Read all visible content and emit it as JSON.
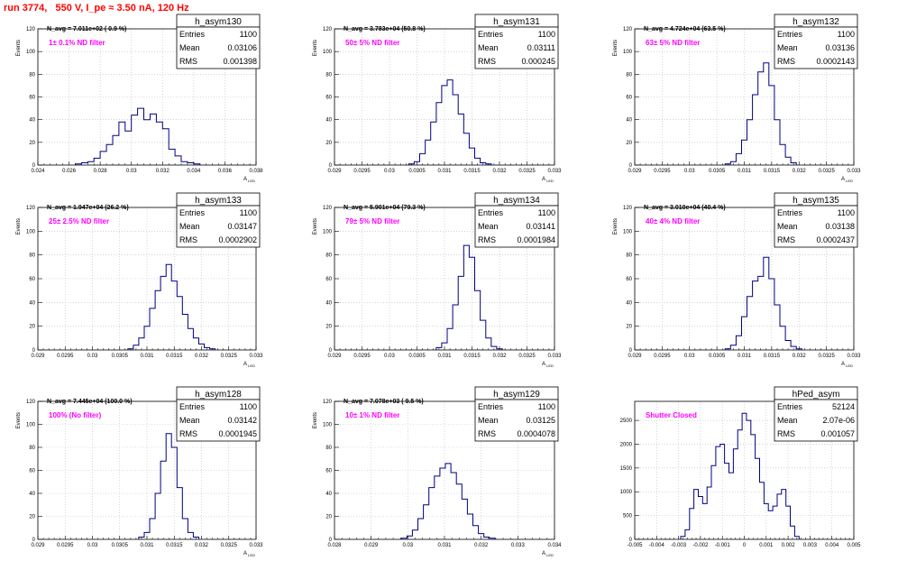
{
  "page": {
    "title": "run 3774,   550 V, I_pe ≈ 3.50 nA, 120 Hz"
  },
  "colors": {
    "histogram": "#000080",
    "filter_label": "#ff00ff",
    "title": "#ff0000",
    "grid": "#bbbbbb"
  },
  "chart_data": [
    {
      "type": "histogram",
      "name": "h_asym130",
      "stats": {
        "entries_label": "Entries",
        "entries": "1100",
        "mean_label": "Mean",
        "mean": "0.03106",
        "rms_label": "RMS",
        "rms": "0.001398"
      },
      "navg_text": "N_avg = 7.011e+02 ( 0.9 %)",
      "filter_text": "1± 0.1% ND filter",
      "xlabel": "A_{LED}",
      "ylabel": "Events",
      "xlim": [
        0.024,
        0.038
      ],
      "x_ticks": [
        0.024,
        0.026,
        0.028,
        0.03,
        0.032,
        0.034,
        0.036,
        0.038
      ],
      "x_tick_labels": [
        "0.024",
        "0.026",
        "0.028",
        "0.03",
        "0.032",
        "0.034",
        "0.036",
        "0.038"
      ],
      "ylim": [
        0,
        120
      ],
      "y_ticks": [
        0,
        20,
        40,
        60,
        80,
        100,
        120
      ],
      "y_tick_labels": [
        "0",
        "20",
        "40",
        "60",
        "80",
        "100",
        "120"
      ],
      "grid": true,
      "bins": [
        [
          0.0266,
          1
        ],
        [
          0.027,
          2
        ],
        [
          0.0274,
          3
        ],
        [
          0.0278,
          6
        ],
        [
          0.0282,
          12
        ],
        [
          0.0286,
          18
        ],
        [
          0.029,
          26
        ],
        [
          0.0294,
          38
        ],
        [
          0.0298,
          30
        ],
        [
          0.0302,
          44
        ],
        [
          0.0306,
          50
        ],
        [
          0.031,
          40
        ],
        [
          0.0314,
          45
        ],
        [
          0.0318,
          38
        ],
        [
          0.0322,
          32
        ],
        [
          0.0326,
          14
        ],
        [
          0.033,
          8
        ],
        [
          0.0334,
          3
        ],
        [
          0.0338,
          2
        ],
        [
          0.0342,
          1
        ]
      ]
    },
    {
      "type": "histogram",
      "name": "h_asym131",
      "stats": {
        "entries_label": "Entries",
        "entries": "1100",
        "mean_label": "Mean",
        "mean": "0.03111",
        "rms_label": "RMS",
        "rms": "0.000245"
      },
      "navg_text": "N_avg = 3.783e+04 (50.8 %)",
      "filter_text": "50± 5% ND filter",
      "xlabel": "A_{LED}",
      "ylabel": "Events",
      "xlim": [
        0.029,
        0.033
      ],
      "x_ticks": [
        0.029,
        0.0295,
        0.03,
        0.0305,
        0.031,
        0.0315,
        0.032,
        0.0325,
        0.033
      ],
      "x_tick_labels": [
        "0.029",
        "0.0295",
        "0.03",
        "0.0305",
        "0.031",
        "0.0315",
        "0.032",
        "0.0325",
        "0.033"
      ],
      "ylim": [
        0,
        120
      ],
      "y_ticks": [
        0,
        20,
        40,
        60,
        80,
        100,
        120
      ],
      "y_tick_labels": [
        "0",
        "20",
        "40",
        "60",
        "80",
        "100",
        "120"
      ],
      "grid": true,
      "bins": [
        [
          0.0304,
          1
        ],
        [
          0.0305,
          3
        ],
        [
          0.0306,
          10
        ],
        [
          0.0307,
          22
        ],
        [
          0.0308,
          38
        ],
        [
          0.0309,
          55
        ],
        [
          0.031,
          70
        ],
        [
          0.0311,
          75
        ],
        [
          0.0312,
          62
        ],
        [
          0.0313,
          45
        ],
        [
          0.0314,
          28
        ],
        [
          0.0315,
          15
        ],
        [
          0.0316,
          6
        ],
        [
          0.0317,
          2
        ],
        [
          0.0318,
          1
        ]
      ]
    },
    {
      "type": "histogram",
      "name": "h_asym132",
      "stats": {
        "entries_label": "Entries",
        "entries": "1100",
        "mean_label": "Mean",
        "mean": "0.03136",
        "rms_label": "RMS",
        "rms": "0.0002143"
      },
      "navg_text": "N_avg = 4.724e+04 (63.5 %)",
      "filter_text": "63± 5% ND filter",
      "xlabel": "A_{LED}",
      "ylabel": "Events",
      "xlim": [
        0.029,
        0.033
      ],
      "x_ticks": [
        0.029,
        0.0295,
        0.03,
        0.0305,
        0.031,
        0.0315,
        0.032,
        0.0325,
        0.033
      ],
      "x_tick_labels": [
        "0.029",
        "0.0295",
        "0.03",
        "0.0305",
        "0.031",
        "0.0315",
        "0.032",
        "0.0325",
        "0.033"
      ],
      "ylim": [
        0,
        120
      ],
      "y_ticks": [
        0,
        20,
        40,
        60,
        80,
        100,
        120
      ],
      "y_tick_labels": [
        "0",
        "20",
        "40",
        "60",
        "80",
        "100",
        "120"
      ],
      "grid": true,
      "bins": [
        [
          0.0307,
          1
        ],
        [
          0.0308,
          3
        ],
        [
          0.0309,
          10
        ],
        [
          0.031,
          22
        ],
        [
          0.0311,
          40
        ],
        [
          0.0312,
          62
        ],
        [
          0.0313,
          82
        ],
        [
          0.0314,
          90
        ],
        [
          0.0315,
          70
        ],
        [
          0.0316,
          40
        ],
        [
          0.0317,
          18
        ],
        [
          0.0318,
          7
        ],
        [
          0.0319,
          2
        ]
      ]
    },
    {
      "type": "histogram",
      "name": "h_asym133",
      "stats": {
        "entries_label": "Entries",
        "entries": "1100",
        "mean_label": "Mean",
        "mean": "0.03147",
        "rms_label": "RMS",
        "rms": "0.0002902"
      },
      "navg_text": "N_avg = 1.947e+04 (26.2 %)",
      "filter_text": "25± 2.5% ND filter",
      "xlabel": "A_{LED}",
      "ylabel": "Events",
      "xlim": [
        0.029,
        0.033
      ],
      "x_ticks": [
        0.029,
        0.0295,
        0.03,
        0.0305,
        0.031,
        0.0315,
        0.032,
        0.0325,
        0.033
      ],
      "x_tick_labels": [
        "0.029",
        "0.0295",
        "0.03",
        "0.0305",
        "0.031",
        "0.0315",
        "0.032",
        "0.0325",
        "0.033"
      ],
      "ylim": [
        0,
        120
      ],
      "y_ticks": [
        0,
        20,
        40,
        60,
        80,
        100,
        120
      ],
      "y_tick_labels": [
        "0",
        "20",
        "40",
        "60",
        "80",
        "100",
        "120"
      ],
      "grid": true,
      "bins": [
        [
          0.0307,
          1
        ],
        [
          0.0308,
          4
        ],
        [
          0.0309,
          10
        ],
        [
          0.031,
          20
        ],
        [
          0.0311,
          35
        ],
        [
          0.0312,
          50
        ],
        [
          0.0313,
          62
        ],
        [
          0.0314,
          72
        ],
        [
          0.0315,
          58
        ],
        [
          0.0316,
          45
        ],
        [
          0.0317,
          30
        ],
        [
          0.0318,
          18
        ],
        [
          0.0319,
          10
        ],
        [
          0.032,
          5
        ],
        [
          0.0321,
          2
        ],
        [
          0.0322,
          1
        ]
      ]
    },
    {
      "type": "histogram",
      "name": "h_asym134",
      "stats": {
        "entries_label": "Entries",
        "entries": "1100",
        "mean_label": "Mean",
        "mean": "0.03141",
        "rms_label": "RMS",
        "rms": "0.0001984"
      },
      "navg_text": "N_avg = 5.901e+04 (79.3 %)",
      "filter_text": "79± 5% ND filter",
      "xlabel": "A_{LED}",
      "ylabel": "Events",
      "xlim": [
        0.029,
        0.033
      ],
      "x_ticks": [
        0.029,
        0.0295,
        0.03,
        0.0305,
        0.031,
        0.0315,
        0.032,
        0.0325,
        0.033
      ],
      "x_tick_labels": [
        "0.029",
        "0.0295",
        "0.03",
        "0.0305",
        "0.031",
        "0.0315",
        "0.032",
        "0.0325",
        "0.033"
      ],
      "ylim": [
        0,
        120
      ],
      "y_ticks": [
        0,
        20,
        40,
        60,
        80,
        100,
        120
      ],
      "y_tick_labels": [
        "0",
        "20",
        "40",
        "60",
        "80",
        "100",
        "120"
      ],
      "grid": true,
      "bins": [
        [
          0.0309,
          2
        ],
        [
          0.031,
          6
        ],
        [
          0.0311,
          18
        ],
        [
          0.0312,
          38
        ],
        [
          0.0313,
          62
        ],
        [
          0.0314,
          88
        ],
        [
          0.0315,
          78
        ],
        [
          0.0316,
          50
        ],
        [
          0.0317,
          25
        ],
        [
          0.0318,
          10
        ],
        [
          0.0319,
          3
        ],
        [
          0.032,
          1
        ]
      ]
    },
    {
      "type": "histogram",
      "name": "h_asym135",
      "stats": {
        "entries_label": "Entries",
        "entries": "1100",
        "mean_label": "Mean",
        "mean": "0.03138",
        "rms_label": "RMS",
        "rms": "0.0002437"
      },
      "navg_text": "N_avg = 3.010e+04 (40.4 %)",
      "filter_text": "40± 4% ND filter",
      "xlabel": "A_{LED}",
      "ylabel": "Events",
      "xlim": [
        0.029,
        0.033
      ],
      "x_ticks": [
        0.029,
        0.0295,
        0.03,
        0.0305,
        0.031,
        0.0315,
        0.032,
        0.0325,
        0.033
      ],
      "x_tick_labels": [
        "0.029",
        "0.0295",
        "0.03",
        "0.0305",
        "0.031",
        "0.0315",
        "0.032",
        "0.0325",
        "0.033"
      ],
      "ylim": [
        0,
        120
      ],
      "y_ticks": [
        0,
        20,
        40,
        60,
        80,
        100,
        120
      ],
      "y_tick_labels": [
        "0",
        "20",
        "40",
        "60",
        "80",
        "100",
        "120"
      ],
      "grid": true,
      "bins": [
        [
          0.0307,
          1
        ],
        [
          0.0308,
          4
        ],
        [
          0.0309,
          12
        ],
        [
          0.031,
          28
        ],
        [
          0.0311,
          45
        ],
        [
          0.0312,
          58
        ],
        [
          0.0313,
          62
        ],
        [
          0.0314,
          78
        ],
        [
          0.0315,
          60
        ],
        [
          0.0316,
          38
        ],
        [
          0.0317,
          20
        ],
        [
          0.0318,
          8
        ],
        [
          0.0319,
          3
        ],
        [
          0.032,
          1
        ]
      ]
    },
    {
      "type": "histogram",
      "name": "h_asym128",
      "stats": {
        "entries_label": "Entries",
        "entries": "1100",
        "mean_label": "Mean",
        "mean": "0.03142",
        "rms_label": "RMS",
        "rms": "0.0001945"
      },
      "navg_text": "N_avg = 7.445e+04 (100.0 %)",
      "filter_text": "100% (No filter)",
      "xlabel": "A_{LED}",
      "ylabel": "Events",
      "xlim": [
        0.029,
        0.033
      ],
      "x_ticks": [
        0.029,
        0.0295,
        0.03,
        0.0305,
        0.031,
        0.0315,
        0.032,
        0.0325,
        0.033
      ],
      "x_tick_labels": [
        "0.029",
        "0.0295",
        "0.03",
        "0.0305",
        "0.031",
        "0.0315",
        "0.032",
        "0.0325",
        "0.033"
      ],
      "ylim": [
        0,
        120
      ],
      "y_ticks": [
        0,
        20,
        40,
        60,
        80,
        100,
        120
      ],
      "y_tick_labels": [
        "0",
        "20",
        "40",
        "60",
        "80",
        "100",
        "120"
      ],
      "grid": true,
      "bins": [
        [
          0.0309,
          2
        ],
        [
          0.031,
          6
        ],
        [
          0.0311,
          18
        ],
        [
          0.0312,
          40
        ],
        [
          0.0313,
          68
        ],
        [
          0.0314,
          92
        ],
        [
          0.0315,
          80
        ],
        [
          0.0316,
          45
        ],
        [
          0.0317,
          18
        ],
        [
          0.0318,
          6
        ],
        [
          0.0319,
          2
        ]
      ]
    },
    {
      "type": "histogram",
      "name": "h_asym129",
      "stats": {
        "entries_label": "Entries",
        "entries": "1100",
        "mean_label": "Mean",
        "mean": "0.03125",
        "rms_label": "RMS",
        "rms": "0.0004078"
      },
      "navg_text": "N_avg = 7.078e+03 ( 9.5 %)",
      "filter_text": "10± 1% ND filter",
      "xlabel": "A_{LED}",
      "ylabel": "Events",
      "xlim": [
        0.028,
        0.034
      ],
      "x_ticks": [
        0.028,
        0.029,
        0.03,
        0.031,
        0.032,
        0.033,
        0.034
      ],
      "x_tick_labels": [
        "0.028",
        "0.029",
        "0.03",
        "0.031",
        "0.032",
        "0.033",
        "0.034"
      ],
      "ylim": [
        0,
        120
      ],
      "y_ticks": [
        0,
        20,
        40,
        60,
        80,
        100,
        120
      ],
      "y_tick_labels": [
        "0",
        "20",
        "40",
        "60",
        "80",
        "100",
        "120"
      ],
      "grid": true,
      "bins": [
        [
          0.0299,
          1
        ],
        [
          0.03005,
          3
        ],
        [
          0.0302,
          8
        ],
        [
          0.03035,
          18
        ],
        [
          0.0305,
          30
        ],
        [
          0.03065,
          45
        ],
        [
          0.0308,
          55
        ],
        [
          0.03095,
          62
        ],
        [
          0.0311,
          66
        ],
        [
          0.03125,
          58
        ],
        [
          0.0314,
          48
        ],
        [
          0.03155,
          35
        ],
        [
          0.0317,
          22
        ],
        [
          0.03185,
          12
        ],
        [
          0.032,
          5
        ],
        [
          0.03215,
          2
        ],
        [
          0.0323,
          1
        ]
      ]
    },
    {
      "type": "histogram",
      "name": "hPed_asym",
      "stats": {
        "entries_label": "Entries",
        "entries": "52124",
        "mean_label": "Mean",
        "mean": "2.07e-06",
        "rms_label": "RMS",
        "rms": "0.001057"
      },
      "navg_text": "",
      "filter_text": "Shutter Closed",
      "xlabel": "",
      "ylabel": "",
      "xlim": [
        -0.005,
        0.005
      ],
      "x_ticks": [
        -0.005,
        -0.004,
        -0.003,
        -0.002,
        -0.001,
        0,
        0.001,
        0.002,
        0.003,
        0.004,
        0.005
      ],
      "x_tick_labels": [
        "-0.005",
        "-0.004",
        "-0.003",
        "-0.002",
        "-0.001",
        "0",
        "0.001",
        "0.002",
        "0.003",
        "0.004",
        "0.005"
      ],
      "ylim": [
        0,
        2900
      ],
      "y_ticks": [
        0,
        500,
        1000,
        1500,
        2000,
        2500
      ],
      "y_tick_labels": [
        "0",
        "500",
        "1000",
        "1500",
        "2000",
        "2500"
      ],
      "grid": true,
      "bins": [
        [
          -0.0028,
          60
        ],
        [
          -0.0026,
          200
        ],
        [
          -0.0024,
          650
        ],
        [
          -0.0022,
          1050
        ],
        [
          -0.002,
          900
        ],
        [
          -0.0018,
          750
        ],
        [
          -0.0016,
          1100
        ],
        [
          -0.0014,
          1550
        ],
        [
          -0.0012,
          1950
        ],
        [
          -0.001,
          2000
        ],
        [
          -0.0008,
          1600
        ],
        [
          -0.0006,
          1400
        ],
        [
          -0.0004,
          1900
        ],
        [
          -0.0002,
          2300
        ],
        [
          0.0,
          2650
        ],
        [
          0.0002,
          2500
        ],
        [
          0.0004,
          2200
        ],
        [
          0.0006,
          1700
        ],
        [
          0.0008,
          1200
        ],
        [
          0.001,
          750
        ],
        [
          0.0012,
          600
        ],
        [
          0.0014,
          700
        ],
        [
          0.0016,
          950
        ],
        [
          0.0018,
          1050
        ],
        [
          0.002,
          700
        ],
        [
          0.0022,
          280
        ],
        [
          0.0024,
          60
        ]
      ]
    }
  ]
}
